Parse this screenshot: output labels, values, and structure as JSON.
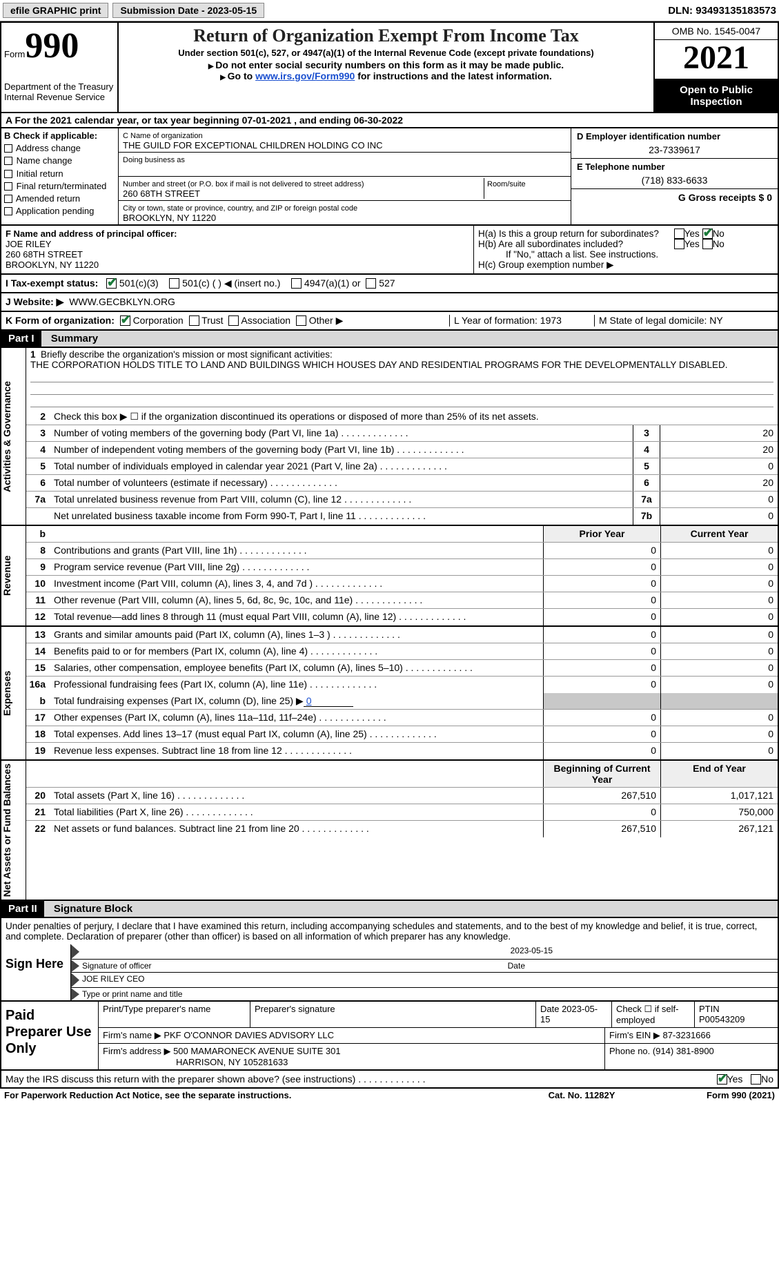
{
  "top": {
    "efile": "efile GRAPHIC print",
    "sub_date_label": "Submission Date - 2023-05-15",
    "dln_label": "DLN: 93493135183573"
  },
  "hdr": {
    "form_word": "Form",
    "form_num": "990",
    "dept": "Department of the Treasury",
    "irs": "Internal Revenue Service",
    "title": "Return of Organization Exempt From Income Tax",
    "sub": "Under section 501(c), 527, or 4947(a)(1) of the Internal Revenue Code (except private foundations)",
    "note1": "Do not enter social security numbers on this form as it may be made public.",
    "note2_pre": "Go to ",
    "note2_link": "www.irs.gov/Form990",
    "note2_post": " for instructions and the latest information.",
    "omb": "OMB No. 1545-0047",
    "year": "2021",
    "open": "Open to Public Inspection"
  },
  "row_a": "A  For the 2021 calendar year, or tax year beginning 07-01-2021   , and ending 06-30-2022",
  "col_b": {
    "title": "B Check if applicable:",
    "opts": [
      "Address change",
      "Name change",
      "Initial return",
      "Final return/terminated",
      "Amended return",
      "Application pending"
    ]
  },
  "col_c": {
    "name_l": "C Name of organization",
    "name": "THE GUILD FOR EXCEPTIONAL CHILDREN HOLDING CO INC",
    "dba_l": "Doing business as",
    "addr_l": "Number and street (or P.O. box if mail is not delivered to street address)",
    "room_l": "Room/suite",
    "addr": "260 68TH STREET",
    "city_l": "City or town, state or province, country, and ZIP or foreign postal code",
    "city": "BROOKLYN, NY  11220"
  },
  "col_d": {
    "ein_l": "D Employer identification number",
    "ein": "23-7339617",
    "tel_l": "E Telephone number",
    "tel": "(718) 833-6633",
    "gross_l": "G Gross receipts $ 0"
  },
  "row_f": {
    "l": "F Name and address of principal officer:",
    "n1": "JOE RILEY",
    "n2": "260 68TH STREET",
    "n3": "BROOKLYN, NY  11220"
  },
  "row_h": {
    "a": "H(a)  Is this a group return for subordinates?",
    "b": "H(b)  Are all subordinates included?",
    "b2": "If \"No,\" attach a list. See instructions.",
    "c": "H(c)  Group exemption number ▶",
    "yes": "Yes",
    "no": "No"
  },
  "row_i": {
    "l": "I  Tax-exempt status:",
    "o1": "501(c)(3)",
    "o2": "501(c) (  ) ◀ (insert no.)",
    "o3": "4947(a)(1) or",
    "o4": "527"
  },
  "row_j": {
    "l": "J  Website: ▶",
    "v": "WWW.GECBKLYN.ORG"
  },
  "row_k": {
    "l": "K Form of organization:",
    "o": [
      "Corporation",
      "Trust",
      "Association",
      "Other ▶"
    ],
    "m": "L Year of formation: 1973",
    "r": "M State of legal domicile: NY"
  },
  "p1": {
    "hdr": "Part I",
    "title": "Summary"
  },
  "s1": {
    "l1": "Briefly describe the organization's mission or most significant activities:",
    "l1v": "THE CORPORATION HOLDS TITLE TO LAND AND BUILDINGS WHICH HOUSES DAY AND RESIDENTIAL PROGRAMS FOR THE DEVELOPMENTALLY DISABLED.",
    "l2": "Check this box ▶ ☐  if the organization discontinued its operations or disposed of more than 25% of its net assets.",
    "rows": [
      {
        "n": "3",
        "t": "Number of voting members of the governing body (Part VI, line 1a)",
        "c": "3",
        "v": "20"
      },
      {
        "n": "4",
        "t": "Number of independent voting members of the governing body (Part VI, line 1b)",
        "c": "4",
        "v": "20"
      },
      {
        "n": "5",
        "t": "Total number of individuals employed in calendar year 2021 (Part V, line 2a)",
        "c": "5",
        "v": "0"
      },
      {
        "n": "6",
        "t": "Total number of volunteers (estimate if necessary)",
        "c": "6",
        "v": "20"
      },
      {
        "n": "7a",
        "t": "Total unrelated business revenue from Part VIII, column (C), line 12",
        "c": "7a",
        "v": "0"
      },
      {
        "n": "",
        "t": "Net unrelated business taxable income from Form 990-T, Part I, line 11",
        "c": "7b",
        "v": "0"
      }
    ]
  },
  "side": {
    "ag": "Activities & Governance",
    "rev": "Revenue",
    "exp": "Expenses",
    "na": "Net Assets or Fund Balances"
  },
  "colhdr": {
    "prior": "Prior Year",
    "curr": "Current Year",
    "beg": "Beginning of Current Year",
    "end": "End of Year"
  },
  "rev": [
    {
      "n": "8",
      "t": "Contributions and grants (Part VIII, line 1h)",
      "p": "0",
      "c": "0"
    },
    {
      "n": "9",
      "t": "Program service revenue (Part VIII, line 2g)",
      "p": "0",
      "c": "0"
    },
    {
      "n": "10",
      "t": "Investment income (Part VIII, column (A), lines 3, 4, and 7d )",
      "p": "0",
      "c": "0"
    },
    {
      "n": "11",
      "t": "Other revenue (Part VIII, column (A), lines 5, 6d, 8c, 9c, 10c, and 11e)",
      "p": "0",
      "c": "0"
    },
    {
      "n": "12",
      "t": "Total revenue—add lines 8 through 11 (must equal Part VIII, column (A), line 12)",
      "p": "0",
      "c": "0"
    }
  ],
  "exp": [
    {
      "n": "13",
      "t": "Grants and similar amounts paid (Part IX, column (A), lines 1–3 )",
      "p": "0",
      "c": "0"
    },
    {
      "n": "14",
      "t": "Benefits paid to or for members (Part IX, column (A), line 4)",
      "p": "0",
      "c": "0"
    },
    {
      "n": "15",
      "t": "Salaries, other compensation, employee benefits (Part IX, column (A), lines 5–10)",
      "p": "0",
      "c": "0"
    },
    {
      "n": "16a",
      "t": "Professional fundraising fees (Part IX, column (A), line 11e)",
      "p": "0",
      "c": "0"
    }
  ],
  "exp_b": {
    "n": "b",
    "t": "Total fundraising expenses (Part IX, column (D), line 25) ▶",
    "v": "0"
  },
  "exp2": [
    {
      "n": "17",
      "t": "Other expenses (Part IX, column (A), lines 11a–11d, 11f–24e)",
      "p": "0",
      "c": "0"
    },
    {
      "n": "18",
      "t": "Total expenses. Add lines 13–17 (must equal Part IX, column (A), line 25)",
      "p": "0",
      "c": "0"
    },
    {
      "n": "19",
      "t": "Revenue less expenses. Subtract line 18 from line 12",
      "p": "0",
      "c": "0"
    }
  ],
  "net": [
    {
      "n": "20",
      "t": "Total assets (Part X, line 16)",
      "p": "267,510",
      "c": "1,017,121"
    },
    {
      "n": "21",
      "t": "Total liabilities (Part X, line 26)",
      "p": "0",
      "c": "750,000"
    },
    {
      "n": "22",
      "t": "Net assets or fund balances. Subtract line 21 from line 20",
      "p": "267,510",
      "c": "267,121"
    }
  ],
  "p2": {
    "hdr": "Part II",
    "title": "Signature Block"
  },
  "sig": {
    "pre": "Under penalties of perjury, I declare that I have examined this return, including accompanying schedules and statements, and to the best of my knowledge and belief, it is true, correct, and complete. Declaration of preparer (other than officer) is based on all information of which preparer has any knowledge.",
    "here": "Sign Here",
    "date": "2023-05-15",
    "sig_l": "Signature of officer",
    "date_l": "Date",
    "name": "JOE RILEY CEO",
    "name_l": "Type or print name and title"
  },
  "paid": {
    "l": "Paid Preparer Use Only",
    "r1": {
      "c1": "Print/Type preparer's name",
      "c2": "Preparer's signature",
      "c3": "Date 2023-05-15",
      "c4": "Check ☐ if self-employed",
      "c5": "PTIN",
      "c5v": "P00543209"
    },
    "r2": {
      "c1": "Firm's name    ▶",
      "c1v": "PKF O'CONNOR DAVIES ADVISORY LLC",
      "c2": "Firm's EIN ▶ 87-3231666"
    },
    "r3": {
      "c1": "Firm's address ▶",
      "c1v": "500 MAMARONECK AVENUE SUITE 301",
      "c1v2": "HARRISON, NY  105281633",
      "c2": "Phone no. (914) 381-8900"
    }
  },
  "footer": {
    "q": "May the IRS discuss this return with the preparer shown above? (see instructions)",
    "yes": "Yes",
    "no": "No"
  },
  "bottom": {
    "l": "For Paperwork Reduction Act Notice, see the separate instructions.",
    "m": "Cat. No. 11282Y",
    "r": "Form 990 (2021)"
  }
}
